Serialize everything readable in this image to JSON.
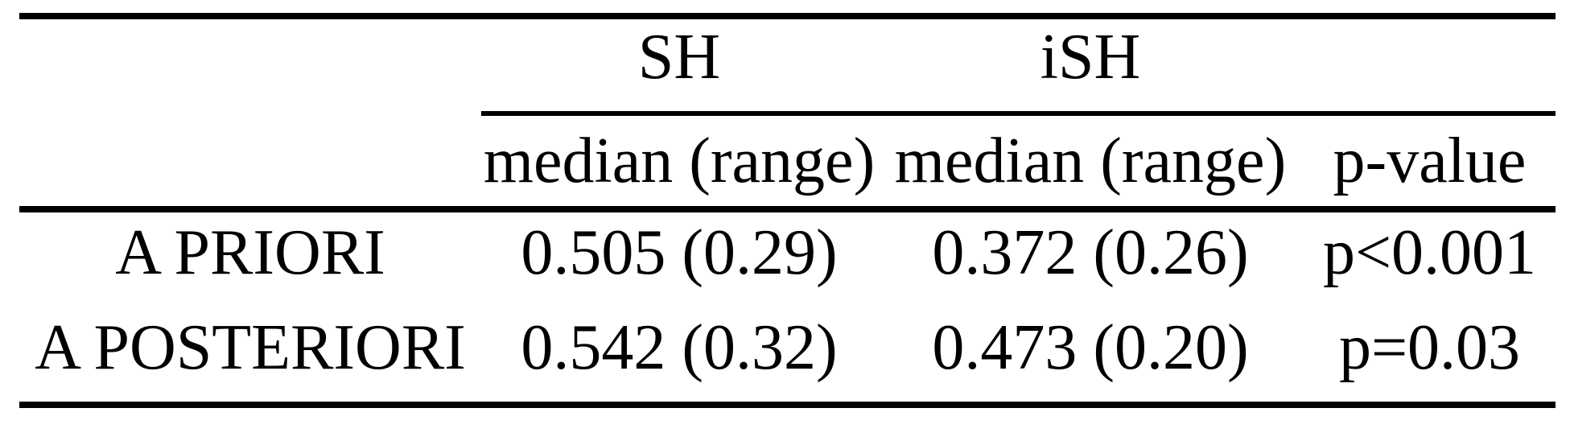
{
  "page": {
    "background_color": "#ffffff",
    "text_color": "#000000",
    "rule_color": "#000000"
  },
  "table": {
    "group_headers": [
      {
        "label": "SH"
      },
      {
        "label": "iSH"
      }
    ],
    "column_headers": [
      "median (range)",
      "median (range)",
      "p-value"
    ],
    "rows": [
      {
        "label": "A PRIORI",
        "values": [
          "0.505 (0.29)",
          "0.372 (0.26)",
          "p<0.001"
        ]
      },
      {
        "label": "A POSTERIORI",
        "values": [
          "0.542 (0.32)",
          "0.473 (0.20)",
          "p=0.03"
        ]
      }
    ]
  },
  "chart_data": {
    "type": "table",
    "columns": [
      "",
      "SH median (range)",
      "iSH median (range)",
      "p-value"
    ],
    "rows": [
      [
        "A PRIORI",
        "0.505 (0.29)",
        "0.372 (0.26)",
        "p<0.001"
      ],
      [
        "A POSTERIORI",
        "0.542 (0.32)",
        "0.473 (0.20)",
        "p=0.03"
      ]
    ]
  }
}
